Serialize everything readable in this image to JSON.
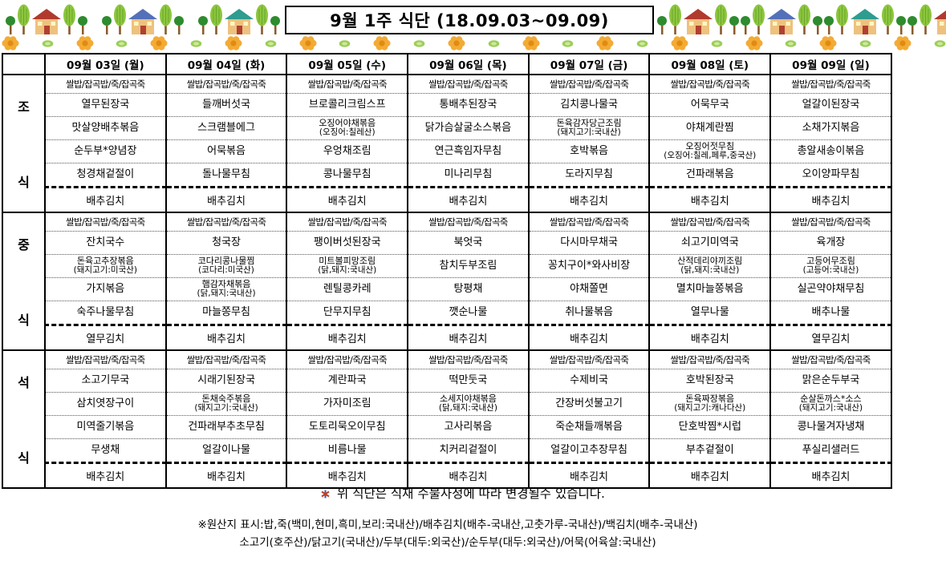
{
  "title": "9월 1주 식단 (18.09.03~09.09)",
  "days": [
    "09월 03일 (월)",
    "09월 04일 (화)",
    "09월 05일 (수)",
    "09월 06일 (목)",
    "09월 07일 (금)",
    "09월 08일 (토)",
    "09월 09일 (일)"
  ],
  "rice_row": "쌀밥/잡곡밥/죽/잡곡죽",
  "sections": [
    {
      "id": "breakfast",
      "label_chars": [
        "조",
        "식"
      ],
      "columns": [
        {
          "dishes": [
            {
              "name": "열무된장국"
            },
            {
              "name": "맛살양배추볶음"
            },
            {
              "name": "순두부*양념장"
            },
            {
              "name": "청경채겉절이"
            }
          ],
          "kimchi": "배추김치"
        },
        {
          "dishes": [
            {
              "name": "들깨버섯국"
            },
            {
              "name": "스크램블에그"
            },
            {
              "name": "어묵볶음"
            },
            {
              "name": "돌나물무침"
            }
          ],
          "kimchi": "배추김치"
        },
        {
          "dishes": [
            {
              "name": "브로콜리크림스프"
            },
            {
              "name": "오징어야채볶음",
              "origin": "(오징어:칠레산)"
            },
            {
              "name": "우엉채조림"
            },
            {
              "name": "콩나물무침"
            }
          ],
          "kimchi": "배추김치"
        },
        {
          "dishes": [
            {
              "name": "통배추된장국"
            },
            {
              "name": "닭가슴살굴소스볶음"
            },
            {
              "name": "연근흑임자무침"
            },
            {
              "name": "미나리무침"
            }
          ],
          "kimchi": "배추김치"
        },
        {
          "dishes": [
            {
              "name": "김치콩나물국"
            },
            {
              "name": "돈육감자당근조림",
              "origin": "(돼지고기:국내산)"
            },
            {
              "name": "호박볶음"
            },
            {
              "name": "도라지무침"
            }
          ],
          "kimchi": "배추김치"
        },
        {
          "dishes": [
            {
              "name": "어묵무국"
            },
            {
              "name": "야채계란찜"
            },
            {
              "name": "오징어젓무침",
              "origin": "(오징어:칠레,페루,중국산)"
            },
            {
              "name": "건파래볶음"
            }
          ],
          "kimchi": "배추김치"
        },
        {
          "dishes": [
            {
              "name": "얼갈이된장국"
            },
            {
              "name": "소채가지볶음"
            },
            {
              "name": "총알새송이볶음"
            },
            {
              "name": "오이양파무침"
            }
          ],
          "kimchi": "배추김치"
        }
      ]
    },
    {
      "id": "lunch",
      "label_chars": [
        "중",
        "식"
      ],
      "columns": [
        {
          "dishes": [
            {
              "name": "잔치국수"
            },
            {
              "name": "돈육고추장볶음",
              "origin": "(돼지고기:미국산)"
            },
            {
              "name": "가지볶음"
            },
            {
              "name": "숙주나물무침"
            }
          ],
          "kimchi": "열무김치"
        },
        {
          "dishes": [
            {
              "name": "청국장"
            },
            {
              "name": "코다리콩나물찜",
              "origin": "(코다리:미국산)"
            },
            {
              "name": "햄감자채볶음",
              "origin": "(닭,돼지:국내산)"
            },
            {
              "name": "마늘쫑무침"
            }
          ],
          "kimchi": "배추김치"
        },
        {
          "dishes": [
            {
              "name": "팽이버섯된장국"
            },
            {
              "name": "미트볼피망조림",
              "origin": "(닭,돼지:국내산)"
            },
            {
              "name": "렌틸콩카레"
            },
            {
              "name": "단무지무침"
            }
          ],
          "kimchi": "배추김치"
        },
        {
          "dishes": [
            {
              "name": "북엇국"
            },
            {
              "name": "참치두부조림"
            },
            {
              "name": "탕평채"
            },
            {
              "name": "깻순나물"
            }
          ],
          "kimchi": "배추김치"
        },
        {
          "dishes": [
            {
              "name": "다시마무채국"
            },
            {
              "name": "꽁치구이*와사비장"
            },
            {
              "name": "야채쫄면"
            },
            {
              "name": "취나물볶음"
            }
          ],
          "kimchi": "배추김치"
        },
        {
          "dishes": [
            {
              "name": "쇠고기미역국"
            },
            {
              "name": "산적데리야끼조림",
              "origin": "(닭,돼지:국내산)"
            },
            {
              "name": "멸치마늘쫑볶음"
            },
            {
              "name": "열무나물"
            }
          ],
          "kimchi": "배추김치"
        },
        {
          "dishes": [
            {
              "name": "육개장"
            },
            {
              "name": "고등어무조림",
              "origin": "(고등어:국내산)"
            },
            {
              "name": "실곤약야채무침"
            },
            {
              "name": "배추나물"
            }
          ],
          "kimchi": "열무김치"
        }
      ]
    },
    {
      "id": "dinner",
      "label_chars": [
        "석",
        "식"
      ],
      "columns": [
        {
          "dishes": [
            {
              "name": "소고기무국"
            },
            {
              "name": "삼치엿장구이"
            },
            {
              "name": "미역줄기볶음"
            },
            {
              "name": "무생채"
            }
          ],
          "kimchi": "배추김치"
        },
        {
          "dishes": [
            {
              "name": "시래기된장국"
            },
            {
              "name": "돈채숙주볶음",
              "origin": "(돼지고기:국내산)"
            },
            {
              "name": "건파래부추초무침"
            },
            {
              "name": "얼갈이나물"
            }
          ],
          "kimchi": "배추김치"
        },
        {
          "dishes": [
            {
              "name": "계란파국"
            },
            {
              "name": "가자미조림"
            },
            {
              "name": "도토리묵오이무침"
            },
            {
              "name": "비름나물"
            }
          ],
          "kimchi": "배추김치"
        },
        {
          "dishes": [
            {
              "name": "떡만둣국"
            },
            {
              "name": "소세지야채볶음",
              "origin": "(닭,돼지:국내산)"
            },
            {
              "name": "고사리볶음"
            },
            {
              "name": "치커리겉절이"
            }
          ],
          "kimchi": "배추김치"
        },
        {
          "dishes": [
            {
              "name": "수제비국"
            },
            {
              "name": "간장버섯불고기"
            },
            {
              "name": "죽순채들깨볶음"
            },
            {
              "name": "얼갈이고추장무침"
            }
          ],
          "kimchi": "배추김치"
        },
        {
          "dishes": [
            {
              "name": "호박된장국"
            },
            {
              "name": "돈육짜장볶음",
              "origin": "(돼지고기:캐나다산)"
            },
            {
              "name": "단호박찜*시럽"
            },
            {
              "name": "부추겉절이"
            }
          ],
          "kimchi": "배추김치"
        },
        {
          "dishes": [
            {
              "name": "맑은순두부국"
            },
            {
              "name": "순살돈까스*소스",
              "origin": "(돼지고기:국내산)"
            },
            {
              "name": "콩나물겨자냉채"
            },
            {
              "name": "푸실리샐러드"
            }
          ],
          "kimchi": "배추김치"
        }
      ]
    }
  ],
  "footer": {
    "change_note": "위 식단은 식재 수불사정에 따라 변경될수 있습니다.",
    "origin_line1": "※원산지 표시:밥,죽(백미,현미,흑미,보리:국내산)/배추김치(배추-국내산,고춧가루-국내산)/백김치(배추-국내산)",
    "origin_line2": "소고기(호주산)/닭고기(국내산)/두부(대두:외국산)/순두부(대두:외국산)/어묵(어육살:국내산)"
  },
  "decor": {
    "house_icon": "house-and-trees-icon",
    "flower_icon": "flower-icon",
    "roof_colors": [
      "#b03a2e",
      "#5470b8",
      "#2e9c8f"
    ],
    "house_body_color": "#eec17f",
    "flower_color": "#f3ab35",
    "flower_center_color": "#e08b12",
    "leaf_color": "#9bcf59",
    "tree_light_color": "#8cc63e",
    "tree_dark_color": "#2e8b2e"
  }
}
